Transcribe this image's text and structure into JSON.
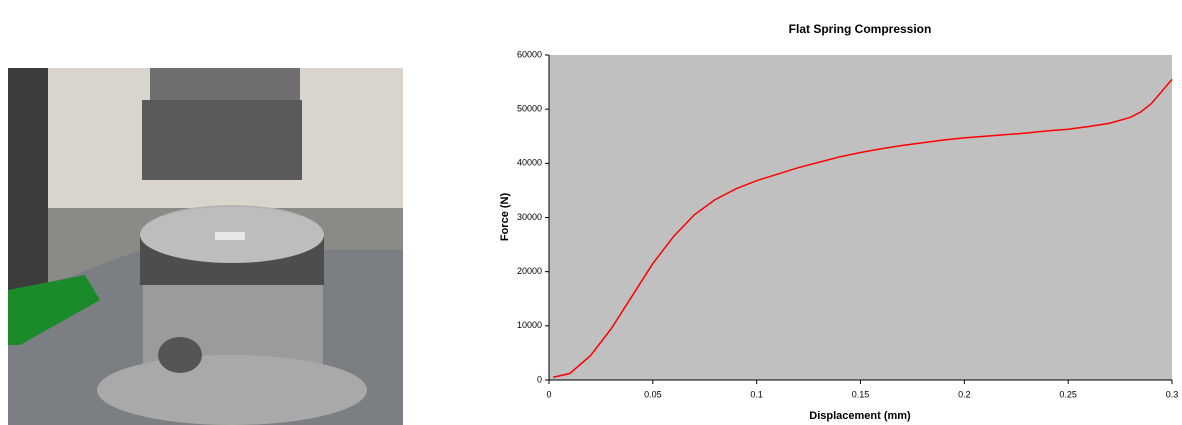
{
  "chart_data": {
    "type": "line",
    "title": "Flat Spring Compression",
    "x_label": "Displacement (mm)",
    "y_label": "Force (N)",
    "x": [
      0.002,
      0.01,
      0.02,
      0.03,
      0.04,
      0.05,
      0.06,
      0.07,
      0.08,
      0.09,
      0.1,
      0.11,
      0.12,
      0.13,
      0.14,
      0.15,
      0.16,
      0.17,
      0.18,
      0.19,
      0.2,
      0.21,
      0.22,
      0.23,
      0.24,
      0.25,
      0.26,
      0.27,
      0.28,
      0.285,
      0.29,
      0.3
    ],
    "values": [
      500,
      1200,
      4500,
      9500,
      15500,
      21500,
      26500,
      30500,
      33300,
      35300,
      36800,
      38000,
      39200,
      40200,
      41200,
      42000,
      42700,
      43300,
      43800,
      44300,
      44700,
      45000,
      45300,
      45600,
      46000,
      46300,
      46800,
      47400,
      48500,
      49500,
      51000,
      55500
    ],
    "color": "#ff0000",
    "plot_background": "#c0c0c0",
    "xlim": [
      0,
      0.3
    ],
    "xticks": [
      0,
      0.05,
      0.1,
      0.15,
      0.2,
      0.25,
      0.3
    ],
    "ylim": [
      0,
      60000
    ],
    "yticks": [
      0,
      10000,
      20000,
      30000,
      40000,
      50000,
      60000
    ]
  }
}
